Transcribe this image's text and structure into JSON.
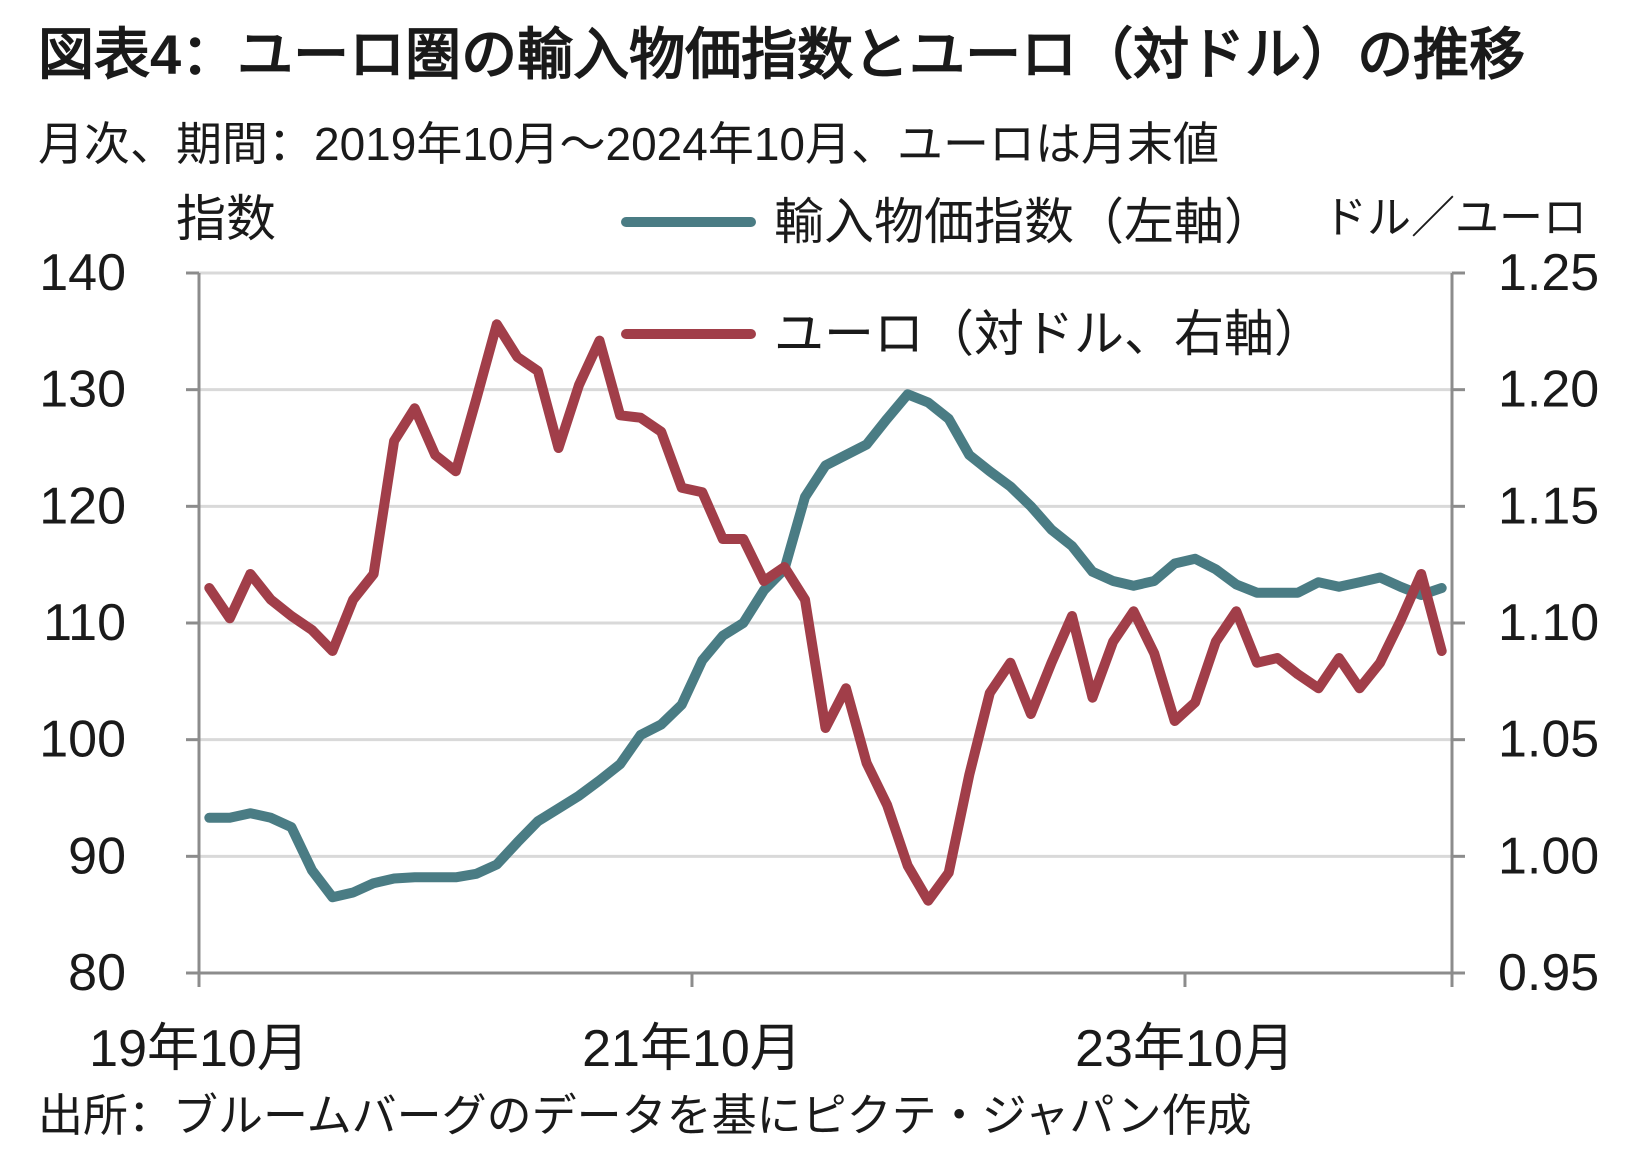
{
  "chart_data": {
    "type": "line",
    "title": "図表4：ユーロ圏の輸入物価指数とユーロ（対ドル）の推移",
    "subtitle": "月次、期間：2019年10月～2024年10月、ユーロは月末値",
    "source": "出所：ブルームバーグのデータを基にピクテ・ジャパン作成",
    "grid": true,
    "legend_position": "top",
    "x_start": {
      "year": 2019,
      "month": 10
    },
    "x_step_months": 1,
    "x_ticks": [
      {
        "label": "19年10月",
        "month_index": 0
      },
      {
        "label": "21年10月",
        "month_index": 24
      },
      {
        "label": "23年10月",
        "month_index": 48
      }
    ],
    "y_left": {
      "label": "指数",
      "min": 80,
      "max": 140,
      "ticks": [
        "140",
        "130",
        "120",
        "110",
        "100",
        "90",
        "80"
      ]
    },
    "y_right": {
      "label": "ドル／ユーロ",
      "min": 0.95,
      "max": 1.25,
      "ticks": [
        "1.25",
        "1.20",
        "1.15",
        "1.10",
        "1.05",
        "1.00",
        "0.95"
      ]
    },
    "series": [
      {
        "name": "輸入物価指数（左軸）",
        "axis_index": 0,
        "color": "#4a7c84",
        "values": [
          93.3,
          93.3,
          93.7,
          93.3,
          92.5,
          88.8,
          86.5,
          86.9,
          87.7,
          88.1,
          88.2,
          88.2,
          88.2,
          88.5,
          89.3,
          91.2,
          93.0,
          94.1,
          95.2,
          96.5,
          97.9,
          100.4,
          101.3,
          103.0,
          106.8,
          108.9,
          110.0,
          112.8,
          114.6,
          120.8,
          123.5,
          124.4,
          125.3,
          127.5,
          129.6,
          128.9,
          127.5,
          124.4,
          123.0,
          121.7,
          120.0,
          118.0,
          116.6,
          114.4,
          113.6,
          113.2,
          113.6,
          115.1,
          115.5,
          114.6,
          113.3,
          112.6,
          112.6,
          112.6,
          113.5,
          113.1,
          113.5,
          113.9,
          113.1,
          112.4,
          113.0
        ]
      },
      {
        "name": "ユーロ（対ドル、右軸）",
        "axis_index": 1,
        "color": "#a13e49",
        "values": [
          1.115,
          1.102,
          1.121,
          1.11,
          1.103,
          1.097,
          1.088,
          1.11,
          1.121,
          1.178,
          1.192,
          1.172,
          1.165,
          1.196,
          1.228,
          1.214,
          1.208,
          1.175,
          1.202,
          1.221,
          1.189,
          1.188,
          1.182,
          1.158,
          1.156,
          1.136,
          1.136,
          1.118,
          1.124,
          1.11,
          1.055,
          1.072,
          1.04,
          1.022,
          0.996,
          0.981,
          0.993,
          1.035,
          1.07,
          1.083,
          1.061,
          1.083,
          1.103,
          1.068,
          1.092,
          1.105,
          1.087,
          1.058,
          1.066,
          1.092,
          1.105,
          1.083,
          1.085,
          1.078,
          1.072,
          1.085,
          1.072,
          1.083,
          1.101,
          1.121,
          1.088
        ]
      }
    ]
  }
}
